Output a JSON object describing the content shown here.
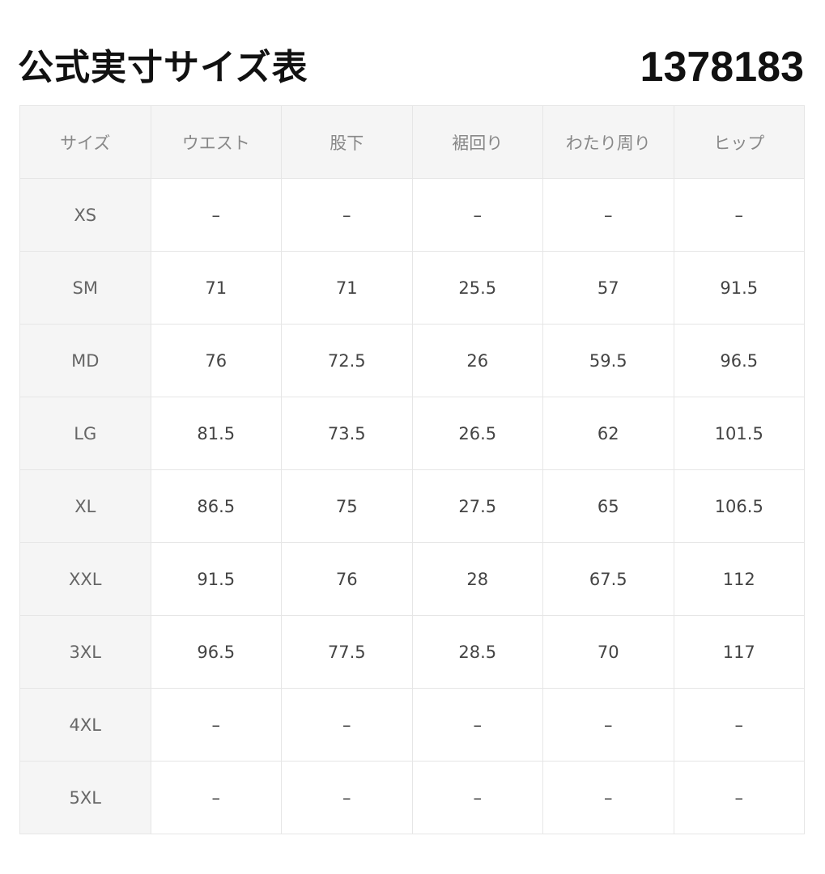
{
  "title": "公式実寸サイズ表",
  "product_code": "1378183",
  "table": {
    "headers": [
      "サイズ",
      "ウエスト",
      "股下",
      "裾回り",
      "わたり周り",
      "ヒップ"
    ],
    "rows": [
      [
        "XS",
        "–",
        "–",
        "–",
        "–",
        "–"
      ],
      [
        "SM",
        "71",
        "71",
        "25.5",
        "57",
        "91.5"
      ],
      [
        "MD",
        "76",
        "72.5",
        "26",
        "59.5",
        "96.5"
      ],
      [
        "LG",
        "81.5",
        "73.5",
        "26.5",
        "62",
        "101.5"
      ],
      [
        "XL",
        "86.5",
        "75",
        "27.5",
        "65",
        "106.5"
      ],
      [
        "XXL",
        "91.5",
        "76",
        "28",
        "67.5",
        "112"
      ],
      [
        "3XL",
        "96.5",
        "77.5",
        "28.5",
        "70",
        "117"
      ],
      [
        "4XL",
        "–",
        "–",
        "–",
        "–",
        "–"
      ],
      [
        "5XL",
        "–",
        "–",
        "–",
        "–",
        "–"
      ]
    ]
  }
}
